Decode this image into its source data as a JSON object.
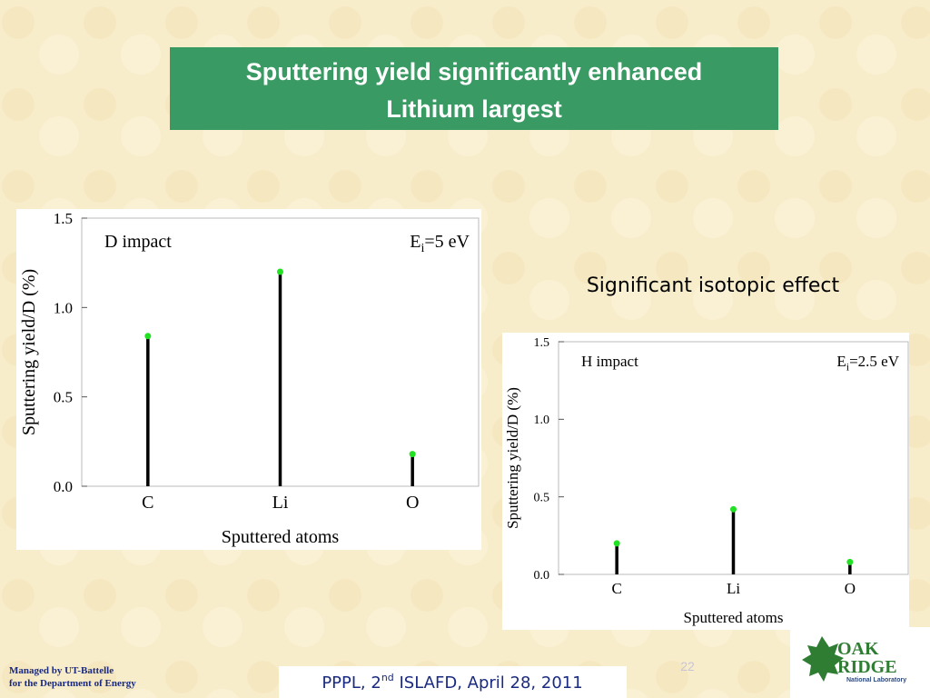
{
  "slide": {
    "title_lines": [
      "Sputtering yield  significantly enhanced",
      "Lithium largest"
    ],
    "note": "Significant isotopic effect",
    "footer_left": [
      "Managed by UT-Battelle",
      "for the Department of Energy"
    ],
    "footer_center": [
      "PPPL, 2",
      "nd",
      " ISLAFD, April 28, 2011"
    ],
    "page_number": "22",
    "logo": [
      "OAK",
      "RIDGE",
      "National Laboratory"
    ]
  },
  "chart_data": [
    {
      "type": "stem",
      "title": "D impact",
      "annotation": [
        "E",
        "i",
        "=5 eV"
      ],
      "x_label": "Sputtered atoms",
      "y_label": "Sputtering yield/D (%)",
      "categories": [
        "C",
        "Li",
        "O"
      ],
      "values": [
        0.84,
        1.2,
        0.18
      ],
      "color": "#000000",
      "marker_color": "#22e022",
      "ylim": [
        0,
        1.5
      ],
      "yticks": [
        {
          "value": 0,
          "label": "0.0"
        },
        0.5,
        {
          "value": 1,
          "label": "1.0"
        },
        1.5
      ]
    },
    {
      "type": "stem",
      "title": "H impact",
      "annotation": [
        "E",
        "i",
        "=2.5 eV"
      ],
      "x_label": "Sputtered atoms",
      "y_label": "Sputtering yield/D (%)",
      "categories": [
        "C",
        "Li",
        "O"
      ],
      "values": [
        0.2,
        0.42,
        0.08
      ],
      "color": "#000000",
      "marker_color": "#22e022",
      "ylim": [
        0,
        1.5
      ],
      "yticks": [
        {
          "value": 0,
          "label": "0.0"
        },
        0.5,
        {
          "value": 1,
          "label": "1.0"
        },
        1.5
      ]
    }
  ]
}
